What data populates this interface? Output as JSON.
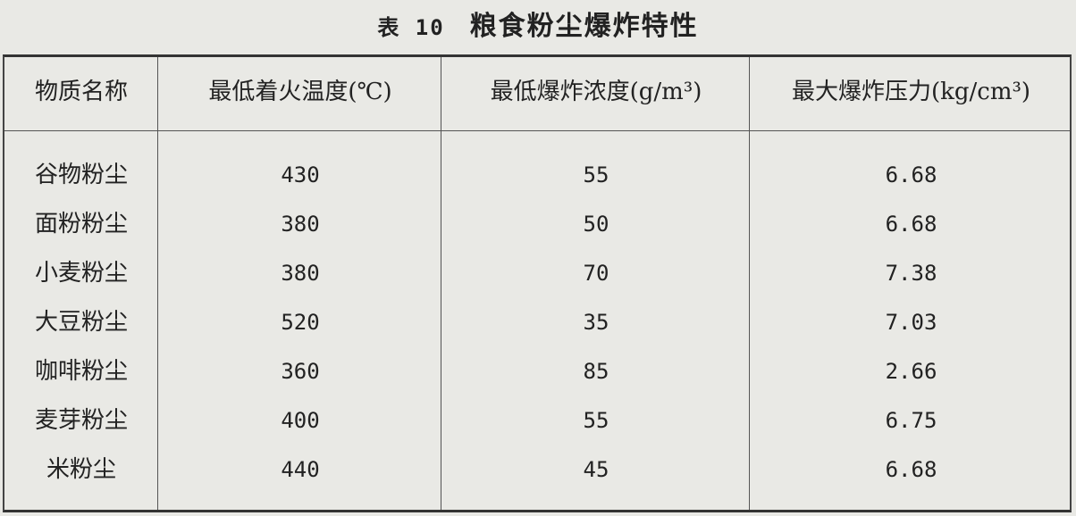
{
  "title": {
    "number": "表 10",
    "text": "粮食粉尘爆炸特性"
  },
  "headers": [
    "物质名称",
    "最低着火温度(℃)",
    "最低爆炸浓度(g/m³)",
    "最大爆炸压力(kg/cm³)"
  ],
  "rows": [
    [
      "谷物粉尘",
      "430",
      "55",
      "6.68"
    ],
    [
      "面粉粉尘",
      "380",
      "50",
      "6.68"
    ],
    [
      "小麦粉尘",
      "380",
      "70",
      "7.38"
    ],
    [
      "大豆粉尘",
      "520",
      "35",
      "7.03"
    ],
    [
      "咖啡粉尘",
      "360",
      "85",
      "2.66"
    ],
    [
      "麦芽粉尘",
      "400",
      "55",
      "6.75"
    ],
    [
      "米粉尘",
      "440",
      "45",
      "6.68"
    ]
  ]
}
